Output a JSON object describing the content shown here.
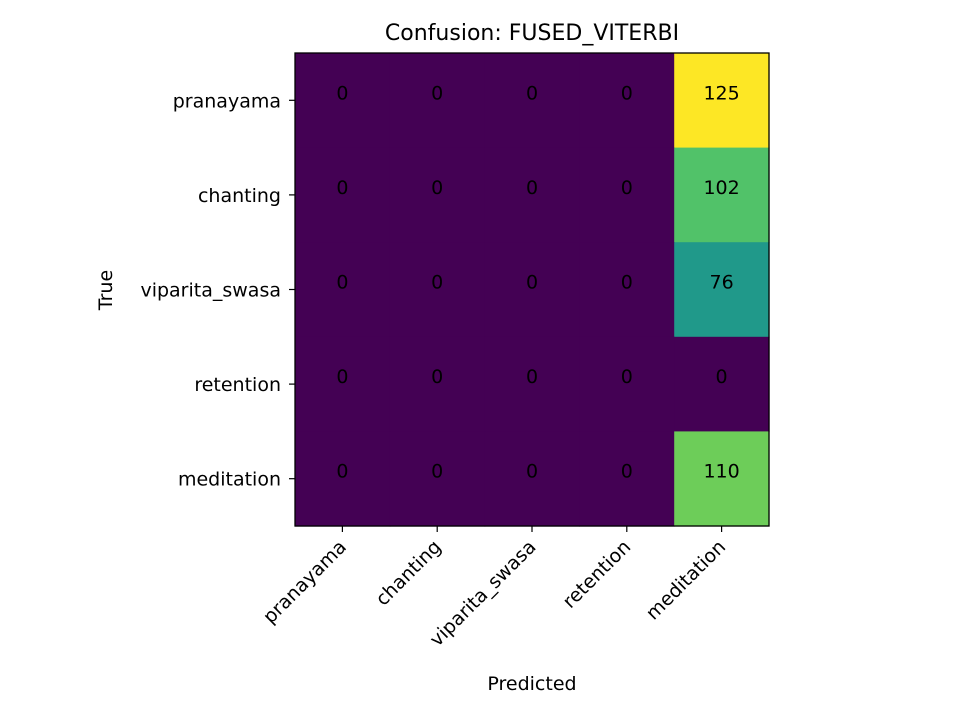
{
  "chart_data": {
    "type": "heatmap",
    "title": "Confusion: FUSED_VITERBI",
    "xlabel": "Predicted",
    "ylabel": "True",
    "rows": [
      "pranayama",
      "chanting",
      "viparita_swasa",
      "retention",
      "meditation"
    ],
    "columns": [
      "pranayama",
      "chanting",
      "viparita_swasa",
      "retention",
      "meditation"
    ],
    "values": [
      [
        0,
        0,
        0,
        0,
        125
      ],
      [
        0,
        0,
        0,
        0,
        102
      ],
      [
        0,
        0,
        0,
        0,
        76
      ],
      [
        0,
        0,
        0,
        0,
        0
      ],
      [
        0,
        0,
        0,
        0,
        110
      ]
    ],
    "colormap": "viridis",
    "vmin": 0,
    "vmax": 125,
    "grid": false
  }
}
